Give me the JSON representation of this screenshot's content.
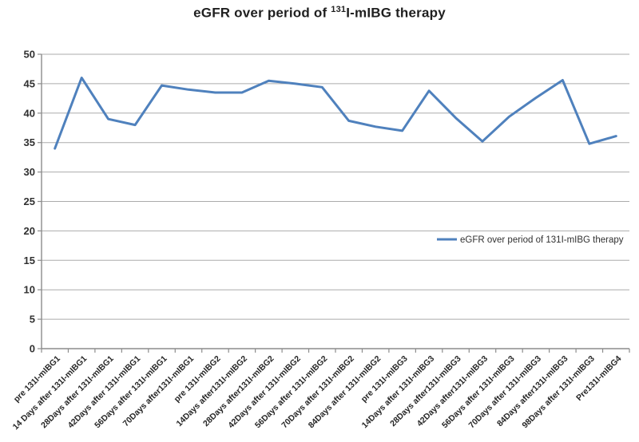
{
  "title": {
    "prefix": "eGFR over period of ",
    "superscript": "131",
    "suffix": "I-mIBG therapy"
  },
  "legend": {
    "label": "eGFR over period of 131I-mIBG therapy",
    "position": "middle-right"
  },
  "chart_data": {
    "type": "line",
    "title": "eGFR over period of 131I-mIBG therapy",
    "xlabel": "",
    "ylabel": "",
    "ylim": [
      0,
      50
    ],
    "yticks": [
      0,
      5,
      10,
      15,
      20,
      25,
      30,
      35,
      40,
      45,
      50
    ],
    "grid": "horizontal",
    "legend_position": "middle-right",
    "categories": [
      "pre 131I-mIBG1",
      "14 Days after 131I-mIBG1",
      "28Days after 131I-mIBG1",
      "42Days after 131I-mIBG1",
      "56Days after 131I-mIBG1",
      "70Days after131I-mIBG1",
      "pre 131I-mIBG2",
      "14Days after131I-mIBG2",
      "28Days after131I-mIBG2",
      "42Days after 131I-mIBG2",
      "56Days after 131I-mIBG2",
      "70Days after 131I-mIBG2",
      "84Days after 131I-mIBG2",
      "pre 131I-mIBG3",
      "14Days after 131I-mIBG3",
      "28Days after131I-mIBG3",
      "42Days after131I-mIBG3",
      "56Days after 131I-mIBG3",
      "70Days after 131I-mIBG3",
      "84Days after131I-mIBG3",
      "98Days after 131I-mIBG3",
      "Pre131I-mIBG4"
    ],
    "series": [
      {
        "name": "eGFR over period of 131I-mIBG therapy",
        "values": [
          34,
          46,
          39,
          38,
          44.7,
          44,
          43.5,
          43.5,
          45.5,
          45,
          44.4,
          38.7,
          37.7,
          37,
          43.8,
          39.2,
          35.2,
          39.4,
          42.6,
          45.6,
          34.8,
          36.1
        ]
      }
    ],
    "colors": {
      "line": "#4F81BD",
      "grid": "#ABABAB",
      "axis": "#8C8C8C"
    }
  }
}
